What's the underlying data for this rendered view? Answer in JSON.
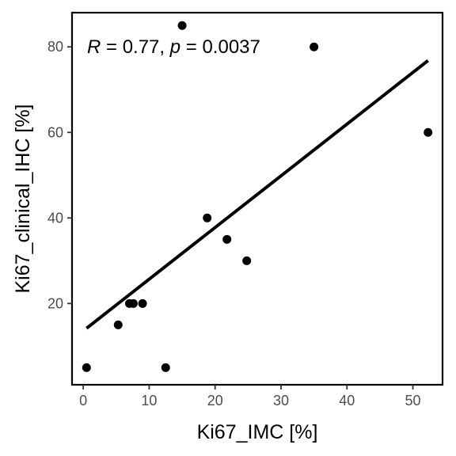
{
  "chart_data": {
    "type": "scatter",
    "title": "",
    "xlabel": "Ki67_IMC [%]",
    "ylabel": "Ki67_clinical_IHC [%]",
    "xlim": [
      -1.7,
      54.5
    ],
    "ylim": [
      1.0,
      88.0
    ],
    "xticks": [
      0,
      10,
      20,
      30,
      40,
      50
    ],
    "yticks": [
      20,
      40,
      60,
      80
    ],
    "grid": false,
    "points": [
      {
        "x": 0.5,
        "y": 5
      },
      {
        "x": 5.3,
        "y": 15
      },
      {
        "x": 7.0,
        "y": 20
      },
      {
        "x": 7.6,
        "y": 20
      },
      {
        "x": 9.0,
        "y": 20
      },
      {
        "x": 12.5,
        "y": 5
      },
      {
        "x": 15.0,
        "y": 85
      },
      {
        "x": 18.8,
        "y": 40
      },
      {
        "x": 21.8,
        "y": 35
      },
      {
        "x": 24.8,
        "y": 30
      },
      {
        "x": 35.0,
        "y": 80
      },
      {
        "x": 52.3,
        "y": 60
      }
    ],
    "fit_line": {
      "x": [
        0.5,
        52.3
      ],
      "y": [
        14.2,
        76.8
      ]
    },
    "annotation": {
      "r_symbol": "R",
      "r_rest": " = 0.77, ",
      "p_symbol": "p",
      "p_rest": " = 0.0037"
    }
  }
}
